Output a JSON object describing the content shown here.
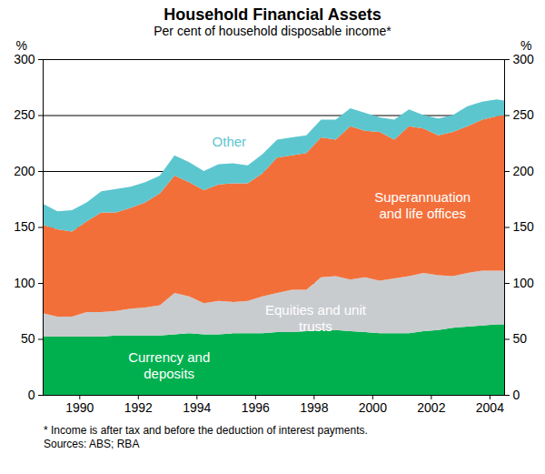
{
  "chart_data": {
    "type": "area",
    "stacked": true,
    "title": "Household Financial Assets",
    "subtitle": "Per cent of household disposable income*",
    "y_label": "%",
    "footnote": "*   Income is after tax and before the deduction of interest payments.",
    "source": "Sources: ABS; RBA",
    "grid": true,
    "x": [
      1988.75,
      1989.25,
      1989.75,
      1990.25,
      1990.75,
      1991.25,
      1991.75,
      1992.25,
      1992.75,
      1993.25,
      1993.75,
      1994.25,
      1994.75,
      1995.25,
      1995.75,
      1996.25,
      1996.75,
      1997.25,
      1997.75,
      1998.25,
      1998.75,
      1999.25,
      1999.75,
      2000.25,
      2000.75,
      2001.25,
      2001.75,
      2002.25,
      2002.75,
      2003.25,
      2003.75,
      2004.25,
      2004.5
    ],
    "xlim": [
      1988.75,
      2004.5
    ],
    "xticks": [
      1990,
      1992,
      1994,
      1996,
      1998,
      2000,
      2002,
      2004
    ],
    "ylim": [
      0,
      300
    ],
    "yticks": [
      0,
      50,
      100,
      150,
      200,
      250,
      300
    ],
    "series": [
      {
        "name": "Currency and deposits",
        "color": "#00b04f",
        "values": [
          52,
          52,
          52,
          52,
          52,
          53,
          53,
          53,
          53,
          54,
          55,
          54,
          54,
          55,
          55,
          55,
          56,
          56,
          57,
          58,
          58,
          57,
          56,
          55,
          55,
          55,
          57,
          58,
          60,
          61,
          62,
          63,
          63
        ]
      },
      {
        "name": "Equities and unit trusts",
        "color": "#c9cccf",
        "values": [
          21,
          18,
          18,
          22,
          22,
          22,
          24,
          25,
          27,
          37,
          33,
          28,
          30,
          28,
          29,
          33,
          35,
          38,
          37,
          47,
          48,
          46,
          49,
          47,
          49,
          51,
          52,
          49,
          46,
          48,
          49,
          48,
          48
        ]
      },
      {
        "name": "Superannuation and life offices",
        "color": "#f36f3a",
        "values": [
          79,
          78,
          76,
          81,
          89,
          88,
          90,
          94,
          100,
          105,
          102,
          101,
          104,
          106,
          105,
          110,
          121,
          120,
          122,
          125,
          122,
          137,
          131,
          133,
          124,
          134,
          129,
          125,
          129,
          131,
          135,
          138,
          139
        ]
      },
      {
        "name": "Other",
        "color": "#5cc6cf",
        "values": [
          19,
          16,
          19,
          17,
          19,
          21,
          19,
          18,
          16,
          18,
          18,
          17,
          18,
          18,
          16,
          17,
          16,
          16,
          16,
          16,
          18,
          16,
          16,
          13,
          18,
          15,
          12,
          15,
          15,
          18,
          16,
          15,
          13
        ]
      }
    ]
  }
}
